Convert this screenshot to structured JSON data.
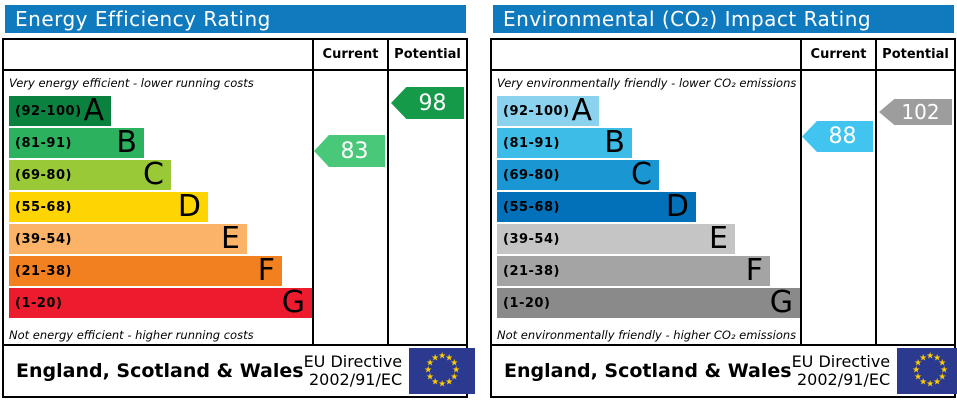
{
  "accent_colors": {
    "header_blue": "#0f7abe",
    "border_black": "#000000",
    "eu_flag_blue": "#2b3a8f",
    "eu_star_yellow": "#ffcc00"
  },
  "panels": [
    {
      "title": "Energy Efficiency Rating",
      "columns": {
        "current": "Current",
        "potential": "Potential"
      },
      "top_note": "Very energy efficient - lower running costs",
      "bottom_note": "Not energy efficient - higher running costs",
      "bands": [
        {
          "range": "(92-100)",
          "letter": "A",
          "color": "#0b8140"
        },
        {
          "range": "(81-91)",
          "letter": "B",
          "color": "#2cb25e"
        },
        {
          "range": "(69-80)",
          "letter": "C",
          "color": "#9ac937"
        },
        {
          "range": "(55-68)",
          "letter": "D",
          "color": "#fed500"
        },
        {
          "range": "(39-54)",
          "letter": "E",
          "color": "#fab367"
        },
        {
          "range": "(21-38)",
          "letter": "F",
          "color": "#f3801f"
        },
        {
          "range": "(1-20)",
          "letter": "G",
          "color": "#ec1c2e"
        }
      ],
      "current": {
        "value": "83",
        "color": "#4ac879"
      },
      "potential": {
        "value": "98",
        "color": "#149a48"
      },
      "footer": {
        "region": "England, Scotland & Wales",
        "directive_line1": "EU Directive",
        "directive_line2": "2002/91/EC"
      }
    },
    {
      "title": "Environmental (CO₂) Impact Rating",
      "columns": {
        "current": "Current",
        "potential": "Potential"
      },
      "top_note": "Very environmentally friendly - lower CO₂ emissions",
      "bottom_note": "Not environmentally friendly - higher CO₂ emissions",
      "bands": [
        {
          "range": "(92-100)",
          "letter": "A",
          "color": "#8bd2ef"
        },
        {
          "range": "(81-91)",
          "letter": "B",
          "color": "#3dbce8"
        },
        {
          "range": "(69-80)",
          "letter": "C",
          "color": "#1a96d3"
        },
        {
          "range": "(55-68)",
          "letter": "D",
          "color": "#0371b9"
        },
        {
          "range": "(39-54)",
          "letter": "E",
          "color": "#c5c5c5"
        },
        {
          "range": "(21-38)",
          "letter": "F",
          "color": "#a4a4a4"
        },
        {
          "range": "(1-20)",
          "letter": "G",
          "color": "#8a8a8a"
        }
      ],
      "current": {
        "value": "88",
        "color": "#41c5f0"
      },
      "potential": {
        "value": "102",
        "color": "#9d9d9d"
      },
      "footer": {
        "region": "England, Scotland & Wales",
        "directive_line1": "EU Directive",
        "directive_line2": "2002/91/EC"
      }
    }
  ],
  "chart_data": [
    {
      "type": "bar",
      "title": "Energy Efficiency Rating",
      "categories": [
        "A (92-100)",
        "B (81-91)",
        "C (69-80)",
        "D (55-68)",
        "E (39-54)",
        "F (21-38)",
        "G (1-20)"
      ],
      "band_colors": [
        "#0b8140",
        "#2cb25e",
        "#9ac937",
        "#fed500",
        "#fab367",
        "#f3801f",
        "#ec1c2e"
      ],
      "markers": {
        "current": 83,
        "potential": 98
      },
      "annotations": [
        "Very energy efficient - lower running costs",
        "Not energy efficient - higher running costs"
      ],
      "footer": "England, Scotland & Wales — EU Directive 2002/91/EC"
    },
    {
      "type": "bar",
      "title": "Environmental (CO₂) Impact Rating",
      "categories": [
        "A (92-100)",
        "B (81-91)",
        "C (69-80)",
        "D (55-68)",
        "E (39-54)",
        "F (21-38)",
        "G (1-20)"
      ],
      "band_colors": [
        "#8bd2ef",
        "#3dbce8",
        "#1a96d3",
        "#0371b9",
        "#c5c5c5",
        "#a4a4a4",
        "#8a8a8a"
      ],
      "markers": {
        "current": 88,
        "potential": 102
      },
      "annotations": [
        "Very environmentally friendly - lower CO₂ emissions",
        "Not environmentally friendly - higher CO₂ emissions"
      ],
      "footer": "England, Scotland & Wales — EU Directive 2002/91/EC"
    }
  ]
}
